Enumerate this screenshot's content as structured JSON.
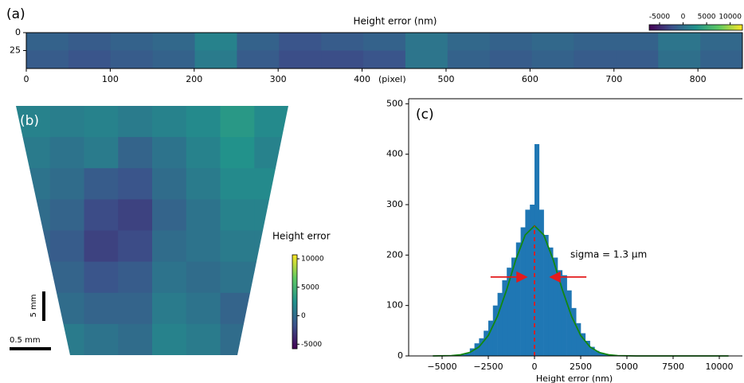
{
  "chart_data": [
    {
      "type": "heatmap",
      "panel_label": "(a)",
      "title": "Height error (nm)",
      "xlabel": "(pixel)",
      "xlim": [
        0,
        853
      ],
      "ylim": [
        0,
        50
      ],
      "xticks": [
        0,
        100,
        200,
        300,
        400,
        500,
        600,
        700,
        800
      ],
      "yticks": [
        0,
        25
      ],
      "clim": [
        -7200,
        12600
      ],
      "cticks": [
        -5000,
        0,
        5000,
        10000
      ],
      "values": [
        [
          -1000,
          -1500,
          -1000,
          -500,
          1500,
          -1000,
          -2000,
          -1500,
          -1000,
          500,
          -500,
          -1000,
          -500,
          -1000,
          -1000,
          500,
          -500
        ],
        [
          -1500,
          -2000,
          -1500,
          -1000,
          1000,
          -1500,
          -2500,
          -2500,
          -2000,
          500,
          -1000,
          -1500,
          -1000,
          -1500,
          -1500,
          0,
          -1000
        ]
      ]
    },
    {
      "type": "heatmap",
      "panel_label": "(b)",
      "colorbar_title": "Height error",
      "clim": [
        -5800,
        10700
      ],
      "cticks": [
        -5000,
        0,
        5000,
        10000
      ],
      "scalebar_v": "5 mm",
      "scalebar_h": "0.5 mm",
      "values": [
        [
          1500,
          1200,
          1500,
          1000,
          1500,
          2000,
          3000,
          2000
        ],
        [
          1000,
          500,
          1000,
          -500,
          500,
          1500,
          2500,
          1500
        ],
        [
          500,
          0,
          -1000,
          -1500,
          0,
          1000,
          2000,
          2000
        ],
        [
          0,
          -500,
          -2000,
          -2500,
          -500,
          500,
          1500,
          1500
        ],
        [
          -500,
          -1000,
          -2500,
          -2000,
          0,
          500,
          1000,
          1000
        ],
        [
          -1500,
          -500,
          -1500,
          -1000,
          500,
          0,
          500,
          500
        ],
        [
          -2000,
          0,
          -500,
          -500,
          1000,
          500,
          -500,
          0
        ],
        [
          -1000,
          1000,
          500,
          0,
          1500,
          1000,
          0,
          -500
        ]
      ]
    },
    {
      "type": "histogram",
      "panel_label": "(c)",
      "xlabel": "Height error (nm)",
      "annotation": "sigma = 1.3 μm",
      "sigma": 1300,
      "color": "#1f77b4",
      "fit_color": "#118811",
      "marker_color": "#e31a1c",
      "xlim": [
        -6810,
        11250
      ],
      "ylim": [
        0,
        510
      ],
      "xticks": [
        {
          "value": -5000,
          "label": "−5000"
        },
        {
          "value": -2500,
          "label": "−2500"
        },
        0,
        2500,
        5000,
        7500,
        10000
      ],
      "yticks": [
        0,
        100,
        200,
        300,
        400,
        500
      ],
      "bins": [
        -4000,
        -3750,
        -3500,
        -3250,
        -3000,
        -2750,
        -2500,
        -2250,
        -2000,
        -1750,
        -1500,
        -1250,
        -1000,
        -750,
        -500,
        -250,
        0,
        250,
        500,
        750,
        1000,
        1250,
        1500,
        1750,
        2000,
        2250,
        2500,
        2750,
        3000,
        3250,
        3500,
        3750,
        4000
      ],
      "values": [
        3,
        5,
        15,
        25,
        35,
        50,
        70,
        100,
        125,
        150,
        175,
        195,
        225,
        255,
        290,
        300,
        420,
        290,
        240,
        215,
        195,
        170,
        160,
        130,
        95,
        65,
        45,
        30,
        18,
        10,
        6,
        4
      ],
      "fit_x": [
        -5500,
        -4500,
        -4000,
        -3500,
        -3000,
        -2500,
        -2000,
        -1500,
        -1000,
        -500,
        0,
        500,
        1000,
        1500,
        2000,
        2500,
        3000,
        3500,
        4000,
        4500,
        5500,
        7000,
        10500
      ],
      "fit_values": [
        0.03,
        0.6,
        2.3,
        6.9,
        18.0,
        40.5,
        79,
        132,
        192,
        240,
        258,
        240,
        192,
        132,
        79,
        40.5,
        18.0,
        6.9,
        2.3,
        0.6,
        0.03,
        0,
        0
      ]
    }
  ]
}
